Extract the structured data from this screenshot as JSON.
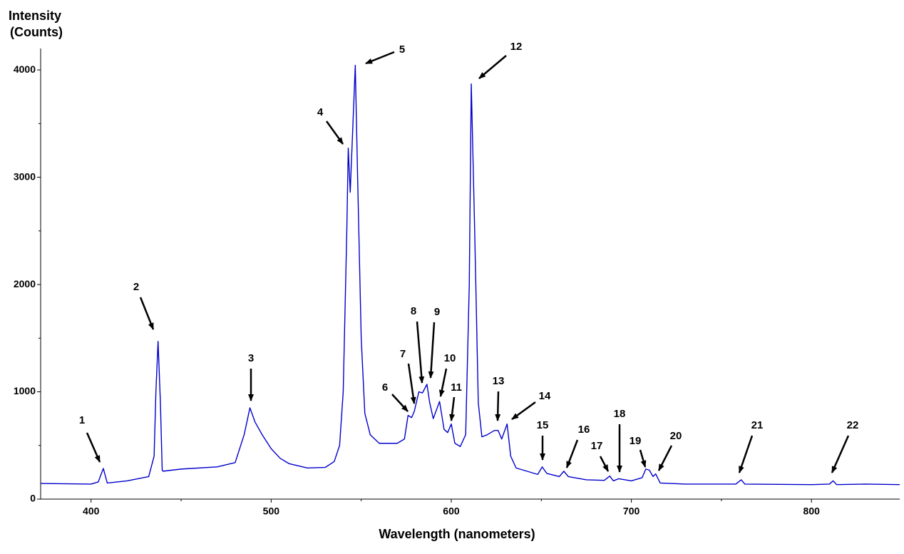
{
  "chart_data": {
    "type": "line",
    "ylabel": [
      "Intensity",
      "(Counts)"
    ],
    "xlabel": "Wavelength (nanometers)",
    "xlim": [
      372,
      849
    ],
    "ylim": [
      0,
      4200
    ],
    "xticks": [
      400,
      500,
      600,
      700,
      800
    ],
    "xminor_ticks": [
      450,
      550,
      650,
      750
    ],
    "yticks": [
      0,
      1000,
      2000,
      3000,
      4000
    ],
    "yminor_ticks": [
      500,
      1500,
      2500,
      3500
    ],
    "grid": false,
    "series": [
      {
        "color": "#0000cc",
        "x": [
          372,
          400,
          404,
          406.8,
          409,
          420,
          432,
          435,
          436,
          437.2,
          438.5,
          439.5,
          440,
          450,
          470,
          480,
          485,
          488.2,
          491,
          495,
          500,
          505,
          510,
          520,
          530,
          535,
          538,
          540,
          542,
          542.8,
          543.9,
          546.7,
          548,
          550,
          552,
          555,
          560,
          570,
          574,
          576,
          578,
          579.5,
          582,
          584,
          586.5,
          588,
          590,
          593.5,
          596,
          598,
          600,
          602,
          605,
          608,
          610,
          611.1,
          613,
          615,
          617,
          620,
          624,
          626,
          628,
          631,
          633,
          636,
          640,
          648,
          650.5,
          653,
          660,
          662.5,
          665,
          675,
          685,
          688,
          690,
          693,
          700,
          706,
          708,
          710,
          712,
          713.5,
          716,
          730,
          758,
          761,
          763,
          800,
          810,
          812,
          814,
          830,
          849
        ],
        "values": [
          146,
          140,
          160,
          286,
          150,
          170,
          210,
          400,
          1000,
          1470,
          900,
          270,
          260,
          280,
          300,
          340,
          600,
          851,
          720,
          600,
          470,
          380,
          330,
          290,
          295,
          350,
          500,
          1000,
          2500,
          3271,
          2860,
          4043,
          3000,
          1500,
          800,
          600,
          520,
          520,
          560,
          780,
          760,
          820,
          1000,
          990,
          1070,
          900,
          750,
          910,
          650,
          620,
          700,
          520,
          490,
          600,
          2000,
          3870,
          2500,
          900,
          580,
          600,
          640,
          640,
          560,
          700,
          400,
          290,
          270,
          230,
          300,
          240,
          210,
          260,
          210,
          180,
          175,
          215,
          170,
          190,
          170,
          200,
          280,
          270,
          210,
          235,
          150,
          140,
          140,
          180,
          140,
          135,
          140,
          170,
          135,
          140,
          135
        ]
      }
    ],
    "annotations": [
      "1",
      "2",
      "3",
      "4",
      "5",
      "6",
      "7",
      "8",
      "9",
      "10",
      "11",
      "12",
      "13",
      "14",
      "15",
      "16",
      "17",
      "18",
      "19",
      "20",
      "21",
      "22"
    ]
  }
}
